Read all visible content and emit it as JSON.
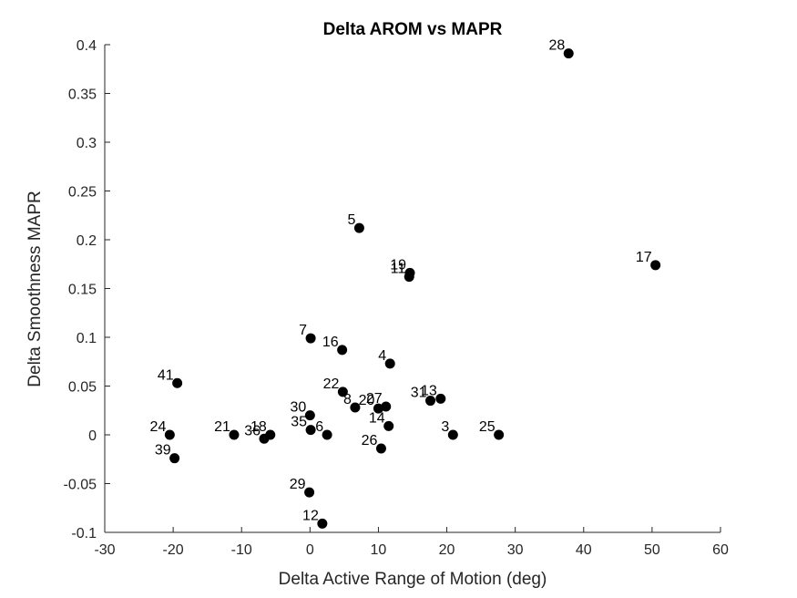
{
  "chart_data": {
    "type": "scatter",
    "title": "Delta AROM vs MAPR",
    "xlabel": "Delta Active Range of Motion (deg)",
    "ylabel": "Delta Smoothness MAPR",
    "xlim": [
      -30,
      60
    ],
    "ylim": [
      -0.1,
      0.4
    ],
    "xticks": [
      -30,
      -20,
      -10,
      0,
      10,
      20,
      30,
      40,
      50,
      60
    ],
    "yticks": [
      -0.1,
      -0.05,
      0,
      0.05,
      0.1,
      0.15,
      0.2,
      0.25,
      0.3,
      0.35,
      0.4
    ],
    "xtick_labels": [
      "-30",
      "-20",
      "-10",
      "0",
      "10",
      "20",
      "30",
      "40",
      "50",
      "60"
    ],
    "ytick_labels": [
      "-0.1",
      "-0.05",
      "0",
      "0.05",
      "0.1",
      "0.15",
      "0.2",
      "0.25",
      "0.3",
      "0.35",
      "0.4"
    ],
    "grid": false,
    "marker_color": "#000000",
    "points": [
      {
        "label": "28",
        "x": 37.8,
        "y": 0.391
      },
      {
        "label": "5",
        "x": 7.2,
        "y": 0.212
      },
      {
        "label": "17",
        "x": 50.5,
        "y": 0.174
      },
      {
        "label": "19",
        "x": 14.6,
        "y": 0.166
      },
      {
        "label": "11",
        "x": 14.5,
        "y": 0.162
      },
      {
        "label": "7",
        "x": 0.1,
        "y": 0.099
      },
      {
        "label": "16",
        "x": 4.7,
        "y": 0.087
      },
      {
        "label": "4",
        "x": 11.7,
        "y": 0.073
      },
      {
        "label": "41",
        "x": -19.4,
        "y": 0.053
      },
      {
        "label": "22",
        "x": 4.8,
        "y": 0.044
      },
      {
        "label": "31",
        "x": 17.6,
        "y": 0.035
      },
      {
        "label": "13",
        "x": 19.1,
        "y": 0.037
      },
      {
        "label": "8",
        "x": 6.6,
        "y": 0.028
      },
      {
        "label": "20",
        "x": 10.0,
        "y": 0.027
      },
      {
        "label": "27",
        "x": 11.1,
        "y": 0.029
      },
      {
        "label": "30",
        "x": 0.0,
        "y": 0.02
      },
      {
        "label": "35",
        "x": 0.1,
        "y": 0.005
      },
      {
        "label": "14",
        "x": 11.5,
        "y": 0.009
      },
      {
        "label": "6",
        "x": 2.5,
        "y": 0.0
      },
      {
        "label": "3",
        "x": 20.9,
        "y": 0.0
      },
      {
        "label": "25",
        "x": 27.6,
        "y": 0.0
      },
      {
        "label": "24",
        "x": -20.5,
        "y": 0.0
      },
      {
        "label": "21",
        "x": -11.1,
        "y": 0.0
      },
      {
        "label": "36",
        "x": -6.7,
        "y": -0.004
      },
      {
        "label": "18",
        "x": -5.8,
        "y": 0.0
      },
      {
        "label": "26",
        "x": 10.4,
        "y": -0.014
      },
      {
        "label": "39",
        "x": -19.8,
        "y": -0.024
      },
      {
        "label": "29",
        "x": -0.1,
        "y": -0.059
      },
      {
        "label": "12",
        "x": 1.8,
        "y": -0.091
      }
    ]
  }
}
